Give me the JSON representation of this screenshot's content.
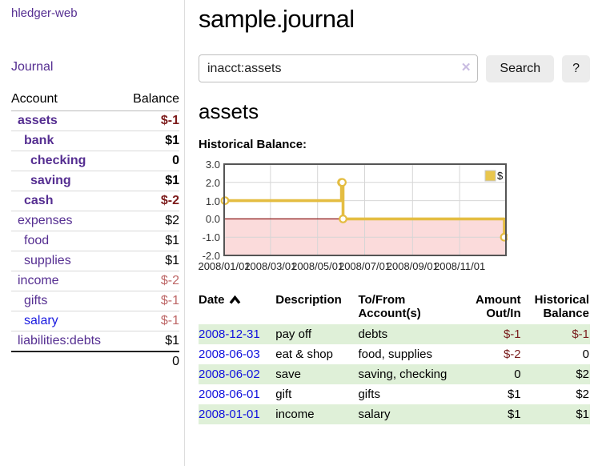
{
  "colors": {
    "accent_purple": "#552e91",
    "link_blue": "#1212dd",
    "negative_strong": "#7c1b1b",
    "negative_soft": "#bd6666",
    "row_stripe_green": "#dff0d8",
    "chart_line_gold": "#e4bd42",
    "chart_negative_pink": "#fbdbdb"
  },
  "sidebar": {
    "brand": "hledger-web",
    "journal_link": "Journal",
    "accounts": {
      "headers": {
        "account": "Account",
        "balance": "Balance"
      },
      "rows": [
        {
          "account": "assets",
          "balance": "$-1",
          "depth": 1,
          "bold": true,
          "neg": "strong",
          "blue": false
        },
        {
          "account": "bank",
          "balance": "$1",
          "depth": 2,
          "bold": true,
          "neg": "none",
          "blue": false
        },
        {
          "account": "checking",
          "balance": "0",
          "depth": 3,
          "bold": true,
          "neg": "none",
          "blue": false
        },
        {
          "account": "saving",
          "balance": "$1",
          "depth": 3,
          "bold": true,
          "neg": "none",
          "blue": false
        },
        {
          "account": "cash",
          "balance": "$-2",
          "depth": 2,
          "bold": true,
          "neg": "strong",
          "blue": false
        },
        {
          "account": "expenses",
          "balance": "$2",
          "depth": 1,
          "bold": false,
          "neg": "none",
          "blue": false
        },
        {
          "account": "food",
          "balance": "$1",
          "depth": 2,
          "bold": false,
          "neg": "none",
          "blue": false
        },
        {
          "account": "supplies",
          "balance": "$1",
          "depth": 2,
          "bold": false,
          "neg": "none",
          "blue": false
        },
        {
          "account": "income",
          "balance": "$-2",
          "depth": 1,
          "bold": false,
          "neg": "soft",
          "blue": false
        },
        {
          "account": "gifts",
          "balance": "$-1",
          "depth": 2,
          "bold": false,
          "neg": "soft",
          "blue": false
        },
        {
          "account": "salary",
          "balance": "$-1",
          "depth": 2,
          "bold": false,
          "neg": "soft",
          "blue": true
        },
        {
          "account": "liabilities:debts",
          "balance": "$1",
          "depth": 1,
          "bold": false,
          "neg": "none",
          "blue": false
        }
      ],
      "total": "0"
    }
  },
  "header": {
    "title": "sample.journal"
  },
  "search": {
    "value": "inacct:assets",
    "clear_label": "✕",
    "button_label": "Search",
    "help_label": "?"
  },
  "account_page": {
    "title": "assets",
    "chart_label": "Historical Balance:"
  },
  "chart_data": {
    "type": "line",
    "title": "Historical Balance:",
    "series": [
      {
        "name": "$",
        "step": true,
        "points": [
          {
            "x": "2008-01-01",
            "y": 1
          },
          {
            "x": "2008-06-01",
            "y": 2
          },
          {
            "x": "2008-06-02",
            "y": 2
          },
          {
            "x": "2008-06-03",
            "y": 0
          },
          {
            "x": "2008-12-31",
            "y": -1
          }
        ]
      }
    ],
    "x_range": [
      "2008-01-01",
      "2008-12-31"
    ],
    "x_ticks": [
      "2008/01/01",
      "2008/03/01",
      "2008/05/01",
      "2008/07/01",
      "2008/09/01",
      "2008/11/01"
    ],
    "y_ticks": [
      3.0,
      2.0,
      1.0,
      0.0,
      -1.0,
      -2.0
    ],
    "ylim": [
      -2.0,
      3.0
    ],
    "grid": true,
    "legend_position": "top-right",
    "line_color": "#e4bd42",
    "marker_fill": "#ffffff",
    "negative_region_color": "#fbdbdb",
    "zero_line_color": "#8b1515",
    "grid_color": "#d6d6d6",
    "frame_color": "#555555",
    "legend_swatch_color": "#e9c64d"
  },
  "register": {
    "headers": {
      "date": "Date",
      "description": "Description",
      "accounts": "To/From Account(s)",
      "amount": "Amount Out/In",
      "balance": "Historical Balance"
    },
    "sort": {
      "column": "date",
      "direction": "asc"
    },
    "rows": [
      {
        "date": "2008-12-31",
        "description": "pay off",
        "accounts": "debts",
        "amount": "$-1",
        "amount_neg": true,
        "balance": "$-1",
        "balance_neg": true
      },
      {
        "date": "2008-06-03",
        "description": "eat & shop",
        "accounts": "food, supplies",
        "amount": "$-2",
        "amount_neg": true,
        "balance": "0",
        "balance_neg": false
      },
      {
        "date": "2008-06-02",
        "description": "save",
        "accounts": "saving, checking",
        "amount": "0",
        "amount_neg": false,
        "balance": "$2",
        "balance_neg": false
      },
      {
        "date": "2008-06-01",
        "description": "gift",
        "accounts": "gifts",
        "amount": "$1",
        "amount_neg": false,
        "balance": "$2",
        "balance_neg": false
      },
      {
        "date": "2008-01-01",
        "description": "income",
        "accounts": "salary",
        "amount": "$1",
        "amount_neg": false,
        "balance": "$1",
        "balance_neg": false
      }
    ]
  }
}
